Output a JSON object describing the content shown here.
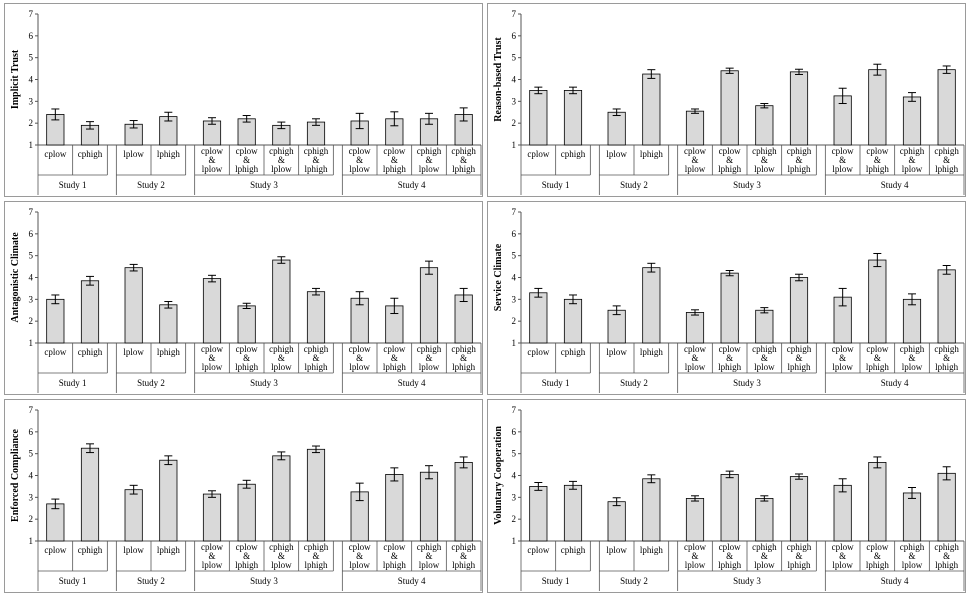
{
  "chart_data": [
    {
      "type": "bar",
      "ylabel": "Implicit Trust",
      "ylim": [
        1,
        7
      ],
      "yticks": [
        1,
        2,
        3,
        4,
        5,
        6,
        7
      ],
      "groups": [
        {
          "study": "Study 1",
          "bars": [
            {
              "label": [
                "cplow"
              ],
              "value": 2.4,
              "err": 0.25
            },
            {
              "label": [
                "cphigh"
              ],
              "value": 1.9,
              "err": 0.17
            }
          ]
        },
        {
          "study": "Study 2",
          "bars": [
            {
              "label": [
                "lplow"
              ],
              "value": 1.95,
              "err": 0.17
            },
            {
              "label": [
                "lphigh"
              ],
              "value": 2.3,
              "err": 0.2
            }
          ]
        },
        {
          "study": "Study 3",
          "bars": [
            {
              "label": [
                "cplow",
                "&",
                "lplow"
              ],
              "value": 2.1,
              "err": 0.15
            },
            {
              "label": [
                "cplow",
                "&",
                "lphigh"
              ],
              "value": 2.2,
              "err": 0.15
            },
            {
              "label": [
                "cphigh",
                "&",
                "lplow"
              ],
              "value": 1.9,
              "err": 0.15
            },
            {
              "label": [
                "cphigh",
                "&",
                "lphigh"
              ],
              "value": 2.05,
              "err": 0.15
            }
          ]
        },
        {
          "study": "Study 4",
          "bars": [
            {
              "label": [
                "cplow",
                "&",
                "lplow"
              ],
              "value": 2.1,
              "err": 0.35
            },
            {
              "label": [
                "cplow",
                "&",
                "lphigh"
              ],
              "value": 2.2,
              "err": 0.32
            },
            {
              "label": [
                "cphigh",
                "&",
                "lplow"
              ],
              "value": 2.2,
              "err": 0.25
            },
            {
              "label": [
                "cphigh",
                "&",
                "lphigh"
              ],
              "value": 2.4,
              "err": 0.3
            }
          ]
        }
      ]
    },
    {
      "type": "bar",
      "ylabel": "Reason-based Trust",
      "ylim": [
        1,
        7
      ],
      "yticks": [
        1,
        2,
        3,
        4,
        5,
        6,
        7
      ],
      "groups": [
        {
          "study": "Study 1",
          "bars": [
            {
              "label": [
                "cplow"
              ],
              "value": 3.5,
              "err": 0.15
            },
            {
              "label": [
                "cphigh"
              ],
              "value": 3.5,
              "err": 0.15
            }
          ]
        },
        {
          "study": "Study 2",
          "bars": [
            {
              "label": [
                "lplow"
              ],
              "value": 2.5,
              "err": 0.15
            },
            {
              "label": [
                "lphigh"
              ],
              "value": 4.25,
              "err": 0.2
            }
          ]
        },
        {
          "study": "Study 3",
          "bars": [
            {
              "label": [
                "cplow",
                "&",
                "lplow"
              ],
              "value": 2.55,
              "err": 0.1
            },
            {
              "label": [
                "cplow",
                "&",
                "lphigh"
              ],
              "value": 4.4,
              "err": 0.12
            },
            {
              "label": [
                "cphigh",
                "&",
                "lplow"
              ],
              "value": 2.8,
              "err": 0.1
            },
            {
              "label": [
                "cphigh",
                "&",
                "lphigh"
              ],
              "value": 4.35,
              "err": 0.12
            }
          ]
        },
        {
          "study": "Study 4",
          "bars": [
            {
              "label": [
                "cplow",
                "&",
                "lplow"
              ],
              "value": 3.25,
              "err": 0.35
            },
            {
              "label": [
                "cplow",
                "&",
                "lphigh"
              ],
              "value": 4.45,
              "err": 0.25
            },
            {
              "label": [
                "cphigh",
                "&",
                "lplow"
              ],
              "value": 3.2,
              "err": 0.2
            },
            {
              "label": [
                "cphigh",
                "&",
                "lphigh"
              ],
              "value": 4.45,
              "err": 0.17
            }
          ]
        }
      ]
    },
    {
      "type": "bar",
      "ylabel": "Antagonistic Climate",
      "ylim": [
        1,
        7
      ],
      "yticks": [
        1,
        2,
        3,
        4,
        5,
        6,
        7
      ],
      "groups": [
        {
          "study": "Study 1",
          "bars": [
            {
              "label": [
                "cplow"
              ],
              "value": 3.0,
              "err": 0.2
            },
            {
              "label": [
                "cphigh"
              ],
              "value": 3.85,
              "err": 0.2
            }
          ]
        },
        {
          "study": "Study 2",
          "bars": [
            {
              "label": [
                "lplow"
              ],
              "value": 4.45,
              "err": 0.15
            },
            {
              "label": [
                "lphigh"
              ],
              "value": 2.75,
              "err": 0.15
            }
          ]
        },
        {
          "study": "Study 3",
          "bars": [
            {
              "label": [
                "cplow",
                "&",
                "lplow"
              ],
              "value": 3.95,
              "err": 0.15
            },
            {
              "label": [
                "cplow",
                "&",
                "lphigh"
              ],
              "value": 2.7,
              "err": 0.12
            },
            {
              "label": [
                "cphigh",
                "&",
                "lplow"
              ],
              "value": 4.8,
              "err": 0.15
            },
            {
              "label": [
                "cphigh",
                "&",
                "lphigh"
              ],
              "value": 3.35,
              "err": 0.15
            }
          ]
        },
        {
          "study": "Study 4",
          "bars": [
            {
              "label": [
                "cplow",
                "&",
                "lplow"
              ],
              "value": 3.05,
              "err": 0.3
            },
            {
              "label": [
                "cplow",
                "&",
                "lphigh"
              ],
              "value": 2.7,
              "err": 0.35
            },
            {
              "label": [
                "cphigh",
                "&",
                "lplow"
              ],
              "value": 4.45,
              "err": 0.3
            },
            {
              "label": [
                "cphigh",
                "&",
                "lphigh"
              ],
              "value": 3.2,
              "err": 0.3
            }
          ]
        }
      ]
    },
    {
      "type": "bar",
      "ylabel": "Service Climate",
      "ylim": [
        1,
        7
      ],
      "yticks": [
        1,
        2,
        3,
        4,
        5,
        6,
        7
      ],
      "groups": [
        {
          "study": "Study 1",
          "bars": [
            {
              "label": [
                "cplow"
              ],
              "value": 3.3,
              "err": 0.2
            },
            {
              "label": [
                "cphigh"
              ],
              "value": 3.0,
              "err": 0.2
            }
          ]
        },
        {
          "study": "Study 2",
          "bars": [
            {
              "label": [
                "lplow"
              ],
              "value": 2.5,
              "err": 0.2
            },
            {
              "label": [
                "lphigh"
              ],
              "value": 4.45,
              "err": 0.2
            }
          ]
        },
        {
          "study": "Study 3",
          "bars": [
            {
              "label": [
                "cplow",
                "&",
                "lplow"
              ],
              "value": 2.4,
              "err": 0.12
            },
            {
              "label": [
                "cplow",
                "&",
                "lphigh"
              ],
              "value": 4.2,
              "err": 0.12
            },
            {
              "label": [
                "cphigh",
                "&",
                "lplow"
              ],
              "value": 2.5,
              "err": 0.12
            },
            {
              "label": [
                "cphigh",
                "&",
                "lphigh"
              ],
              "value": 4.0,
              "err": 0.15
            }
          ]
        },
        {
          "study": "Study 4",
          "bars": [
            {
              "label": [
                "cplow",
                "&",
                "lplow"
              ],
              "value": 3.1,
              "err": 0.4
            },
            {
              "label": [
                "cplow",
                "&",
                "lphigh"
              ],
              "value": 4.8,
              "err": 0.3
            },
            {
              "label": [
                "cphigh",
                "&",
                "lplow"
              ],
              "value": 3.0,
              "err": 0.25
            },
            {
              "label": [
                "cphigh",
                "&",
                "lphigh"
              ],
              "value": 4.35,
              "err": 0.2
            }
          ]
        }
      ]
    },
    {
      "type": "bar",
      "ylabel": "Enforced Compliance",
      "ylim": [
        1,
        7
      ],
      "yticks": [
        1,
        2,
        3,
        4,
        5,
        6,
        7
      ],
      "groups": [
        {
          "study": "Study 1",
          "bars": [
            {
              "label": [
                "cplow"
              ],
              "value": 2.7,
              "err": 0.22
            },
            {
              "label": [
                "cphigh"
              ],
              "value": 5.25,
              "err": 0.2
            }
          ]
        },
        {
          "study": "Study 2",
          "bars": [
            {
              "label": [
                "lplow"
              ],
              "value": 3.35,
              "err": 0.2
            },
            {
              "label": [
                "lphigh"
              ],
              "value": 4.7,
              "err": 0.2
            }
          ]
        },
        {
          "study": "Study 3",
          "bars": [
            {
              "label": [
                "cplow",
                "&",
                "lplow"
              ],
              "value": 3.15,
              "err": 0.15
            },
            {
              "label": [
                "cplow",
                "&",
                "lphigh"
              ],
              "value": 3.6,
              "err": 0.18
            },
            {
              "label": [
                "cphigh",
                "&",
                "lplow"
              ],
              "value": 4.9,
              "err": 0.18
            },
            {
              "label": [
                "cphigh",
                "&",
                "lphigh"
              ],
              "value": 5.2,
              "err": 0.15
            }
          ]
        },
        {
          "study": "Study 4",
          "bars": [
            {
              "label": [
                "cplow",
                "&",
                "lplow"
              ],
              "value": 3.25,
              "err": 0.4
            },
            {
              "label": [
                "cplow",
                "&",
                "lphigh"
              ],
              "value": 4.05,
              "err": 0.3
            },
            {
              "label": [
                "cphigh",
                "&",
                "lplow"
              ],
              "value": 4.15,
              "err": 0.3
            },
            {
              "label": [
                "cphigh",
                "&",
                "lphigh"
              ],
              "value": 4.6,
              "err": 0.25
            }
          ]
        }
      ]
    },
    {
      "type": "bar",
      "ylabel": "Voluntary Cooperation",
      "ylim": [
        1,
        7
      ],
      "yticks": [
        1,
        2,
        3,
        4,
        5,
        6,
        7
      ],
      "groups": [
        {
          "study": "Study 1",
          "bars": [
            {
              "label": [
                "cplow"
              ],
              "value": 3.5,
              "err": 0.18
            },
            {
              "label": [
                "cphigh"
              ],
              "value": 3.55,
              "err": 0.18
            }
          ]
        },
        {
          "study": "Study 2",
          "bars": [
            {
              "label": [
                "lplow"
              ],
              "value": 2.8,
              "err": 0.18
            },
            {
              "label": [
                "lphigh"
              ],
              "value": 3.85,
              "err": 0.18
            }
          ]
        },
        {
          "study": "Study 3",
          "bars": [
            {
              "label": [
                "cplow",
                "&",
                "lplow"
              ],
              "value": 2.95,
              "err": 0.12
            },
            {
              "label": [
                "cplow",
                "&",
                "lphigh"
              ],
              "value": 4.05,
              "err": 0.15
            },
            {
              "label": [
                "cphigh",
                "&",
                "lplow"
              ],
              "value": 2.95,
              "err": 0.12
            },
            {
              "label": [
                "cphigh",
                "&",
                "lphigh"
              ],
              "value": 3.95,
              "err": 0.12
            }
          ]
        },
        {
          "study": "Study 4",
          "bars": [
            {
              "label": [
                "cplow",
                "&",
                "lplow"
              ],
              "value": 3.55,
              "err": 0.3
            },
            {
              "label": [
                "cplow",
                "&",
                "lphigh"
              ],
              "value": 4.6,
              "err": 0.25
            },
            {
              "label": [
                "cphigh",
                "&",
                "lplow"
              ],
              "value": 3.2,
              "err": 0.25
            },
            {
              "label": [
                "cphigh",
                "&",
                "lphigh"
              ],
              "value": 4.1,
              "err": 0.3
            }
          ]
        }
      ]
    }
  ],
  "colors": {
    "bar_fill": "#d9d9d9",
    "bar_stroke": "#000000",
    "axis": "#555555",
    "panel_border": "#9a9a9a"
  }
}
